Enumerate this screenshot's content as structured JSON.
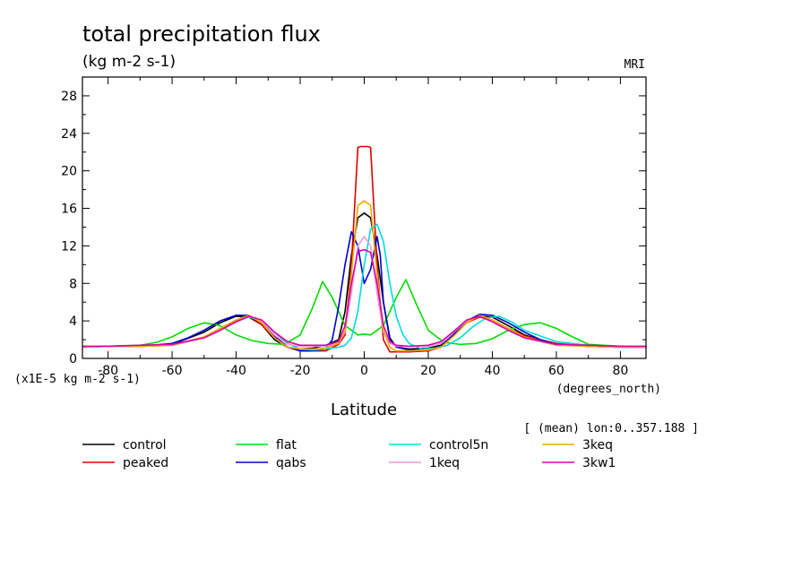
{
  "chart_data": {
    "type": "line",
    "title": "total precipitation flux",
    "subtitle": "(kg m-2 s-1)",
    "source_label": "MRI",
    "scale_note": "(x1E-5 kg m-2 s-1)",
    "xlabel": "Latitude",
    "x_units": "(degrees_north)",
    "mean_note": "[ (mean) lon:0..357.188 ]",
    "xlim": [
      -88,
      88
    ],
    "ylim": [
      0,
      30
    ],
    "xticks": [
      -80,
      -60,
      -40,
      -20,
      0,
      20,
      40,
      60,
      80
    ],
    "yticks": [
      0,
      4,
      8,
      12,
      16,
      20,
      24,
      28
    ],
    "grid": false,
    "legend_position": "bottom",
    "series": [
      {
        "name": "control",
        "color": "#000000",
        "x": [
          -88,
          -80,
          -70,
          -60,
          -50,
          -45,
          -40,
          -36,
          -32,
          -28,
          -24,
          -20,
          -16,
          -12,
          -8,
          -6,
          -4,
          -2,
          0,
          2,
          4,
          6,
          8,
          10,
          14,
          20,
          24,
          28,
          32,
          36,
          40,
          45,
          50,
          60,
          70,
          80,
          88
        ],
        "y": [
          1.2,
          1.3,
          1.3,
          1.5,
          2.8,
          3.8,
          4.5,
          4.4,
          3.6,
          2.0,
          1.2,
          1.0,
          1.1,
          1.4,
          2.0,
          5.0,
          11.0,
          15.0,
          15.5,
          15.0,
          11.0,
          6.0,
          2.2,
          1.2,
          1.0,
          1.1,
          1.4,
          2.5,
          3.8,
          4.5,
          4.4,
          3.5,
          2.5,
          1.5,
          1.3,
          1.2,
          1.2
        ]
      },
      {
        "name": "peaked",
        "color": "#dd0000",
        "x": [
          -88,
          -80,
          -70,
          -60,
          -50,
          -45,
          -40,
          -36,
          -32,
          -28,
          -24,
          -20,
          -16,
          -12,
          -8,
          -6,
          -4,
          -2,
          -1,
          1,
          2,
          4,
          6,
          8,
          10,
          14,
          20,
          24,
          28,
          32,
          36,
          40,
          45,
          50,
          60,
          70,
          80,
          88
        ],
        "y": [
          1.2,
          1.3,
          1.3,
          1.4,
          2.2,
          3.0,
          4.0,
          4.5,
          3.6,
          2.2,
          1.2,
          0.8,
          0.8,
          0.8,
          1.5,
          2.5,
          10.0,
          22.5,
          22.6,
          22.6,
          22.5,
          10.0,
          2.0,
          0.7,
          0.7,
          0.7,
          0.8,
          1.2,
          2.5,
          3.8,
          4.4,
          4.1,
          3.2,
          2.4,
          1.6,
          1.3,
          1.2,
          1.2
        ]
      },
      {
        "name": "flat",
        "color": "#00dd00",
        "x": [
          -88,
          -80,
          -70,
          -65,
          -60,
          -55,
          -50,
          -45,
          -40,
          -35,
          -30,
          -25,
          -20,
          -16,
          -13,
          -10,
          -6,
          -2,
          0,
          2,
          6,
          10,
          13,
          16,
          20,
          25,
          30,
          35,
          40,
          45,
          50,
          55,
          60,
          65,
          70,
          80,
          88
        ],
        "y": [
          1.2,
          1.3,
          1.4,
          1.7,
          2.3,
          3.2,
          3.8,
          3.5,
          2.5,
          1.9,
          1.6,
          1.5,
          2.5,
          5.5,
          8.2,
          6.5,
          3.5,
          2.5,
          2.6,
          2.5,
          3.5,
          6.5,
          8.4,
          6.0,
          3.0,
          1.7,
          1.5,
          1.6,
          2.1,
          3.0,
          3.6,
          3.8,
          3.2,
          2.3,
          1.5,
          1.3,
          1.2
        ]
      },
      {
        "name": "qabs",
        "color": "#0000cc",
        "x": [
          -88,
          -80,
          -70,
          -60,
          -55,
          -50,
          -45,
          -40,
          -36,
          -32,
          -28,
          -24,
          -20,
          -16,
          -12,
          -10,
          -8,
          -6,
          -4,
          -2,
          0,
          2,
          4,
          5,
          6,
          8,
          10,
          14,
          20,
          24,
          28,
          32,
          36,
          40,
          45,
          50,
          55,
          60,
          70,
          80,
          88
        ],
        "y": [
          1.2,
          1.3,
          1.3,
          1.6,
          2.2,
          3.0,
          4.0,
          4.6,
          4.6,
          3.8,
          2.4,
          1.2,
          0.8,
          0.8,
          1.0,
          2.0,
          5.5,
          10.0,
          13.5,
          12.0,
          8.0,
          9.5,
          13.0,
          11.0,
          6.0,
          2.0,
          1.2,
          0.9,
          0.9,
          1.3,
          2.6,
          4.0,
          4.7,
          4.6,
          3.8,
          2.8,
          2.0,
          1.5,
          1.3,
          1.2,
          1.2
        ]
      },
      {
        "name": "control5n",
        "color": "#00dddd",
        "x": [
          -88,
          -80,
          -70,
          -60,
          -50,
          -45,
          -40,
          -36,
          -32,
          -28,
          -24,
          -20,
          -16,
          -12,
          -8,
          -6,
          -4,
          -2,
          0,
          2,
          4,
          6,
          8,
          10,
          12,
          14,
          18,
          22,
          26,
          30,
          34,
          38,
          42,
          46,
          50,
          60,
          70,
          80,
          88
        ],
        "y": [
          1.2,
          1.3,
          1.3,
          1.4,
          2.2,
          3.0,
          3.9,
          4.4,
          4.0,
          2.8,
          1.6,
          1.0,
          0.9,
          1.0,
          1.2,
          1.4,
          2.2,
          5.0,
          10.0,
          13.8,
          14.3,
          12.5,
          8.0,
          4.5,
          2.6,
          1.6,
          1.0,
          1.1,
          1.4,
          2.2,
          3.4,
          4.3,
          4.5,
          3.9,
          3.0,
          1.8,
          1.4,
          1.3,
          1.2
        ]
      },
      {
        "name": "1keq",
        "color": "#ee99dd",
        "x": [
          -88,
          -80,
          -70,
          -60,
          -50,
          -45,
          -40,
          -36,
          -32,
          -28,
          -24,
          -20,
          -16,
          -12,
          -8,
          -6,
          -4,
          -2,
          0,
          2,
          4,
          6,
          8,
          10,
          14,
          20,
          24,
          28,
          32,
          36,
          40,
          45,
          50,
          60,
          70,
          80,
          88
        ],
        "y": [
          1.2,
          1.3,
          1.3,
          1.4,
          2.2,
          3.0,
          3.9,
          4.5,
          4.0,
          2.5,
          1.5,
          1.3,
          1.3,
          1.3,
          1.6,
          2.8,
          7.0,
          12.0,
          13.0,
          12.0,
          7.0,
          2.8,
          1.6,
          1.3,
          1.3,
          1.3,
          1.6,
          2.8,
          4.0,
          4.5,
          3.9,
          3.0,
          2.2,
          1.4,
          1.3,
          1.2,
          1.2
        ]
      },
      {
        "name": "3keq",
        "color": "#eeaa00",
        "x": [
          -88,
          -80,
          -70,
          -60,
          -50,
          -45,
          -40,
          -36,
          -32,
          -28,
          -24,
          -20,
          -16,
          -12,
          -8,
          -6,
          -4,
          -2,
          0,
          2,
          4,
          6,
          8,
          10,
          14,
          20,
          24,
          28,
          32,
          36,
          40,
          45,
          50,
          60,
          70,
          80,
          88
        ],
        "y": [
          1.2,
          1.3,
          1.3,
          1.4,
          2.3,
          3.2,
          4.1,
          4.6,
          3.8,
          2.2,
          1.2,
          1.0,
          1.0,
          1.1,
          1.6,
          3.0,
          9.0,
          16.3,
          16.8,
          16.3,
          9.0,
          3.0,
          1.2,
          0.8,
          0.8,
          0.9,
          1.2,
          2.4,
          3.8,
          4.6,
          4.1,
          3.2,
          2.3,
          1.4,
          1.3,
          1.2,
          1.2
        ]
      },
      {
        "name": "3kw1",
        "color": "#dd00aa",
        "x": [
          -88,
          -80,
          -70,
          -60,
          -50,
          -45,
          -40,
          -36,
          -32,
          -28,
          -24,
          -20,
          -16,
          -12,
          -8,
          -6,
          -4,
          -2,
          0,
          2,
          4,
          6,
          8,
          10,
          14,
          20,
          24,
          28,
          32,
          36,
          40,
          45,
          50,
          60,
          70,
          80,
          88
        ],
        "y": [
          1.3,
          1.3,
          1.4,
          1.5,
          2.2,
          3.0,
          3.9,
          4.5,
          4.1,
          2.8,
          1.8,
          1.4,
          1.4,
          1.4,
          1.8,
          3.5,
          8.0,
          11.4,
          11.6,
          11.3,
          8.0,
          3.5,
          1.8,
          1.4,
          1.3,
          1.4,
          1.8,
          2.9,
          4.1,
          4.5,
          3.9,
          3.0,
          2.2,
          1.5,
          1.4,
          1.3,
          1.3
        ]
      }
    ]
  }
}
